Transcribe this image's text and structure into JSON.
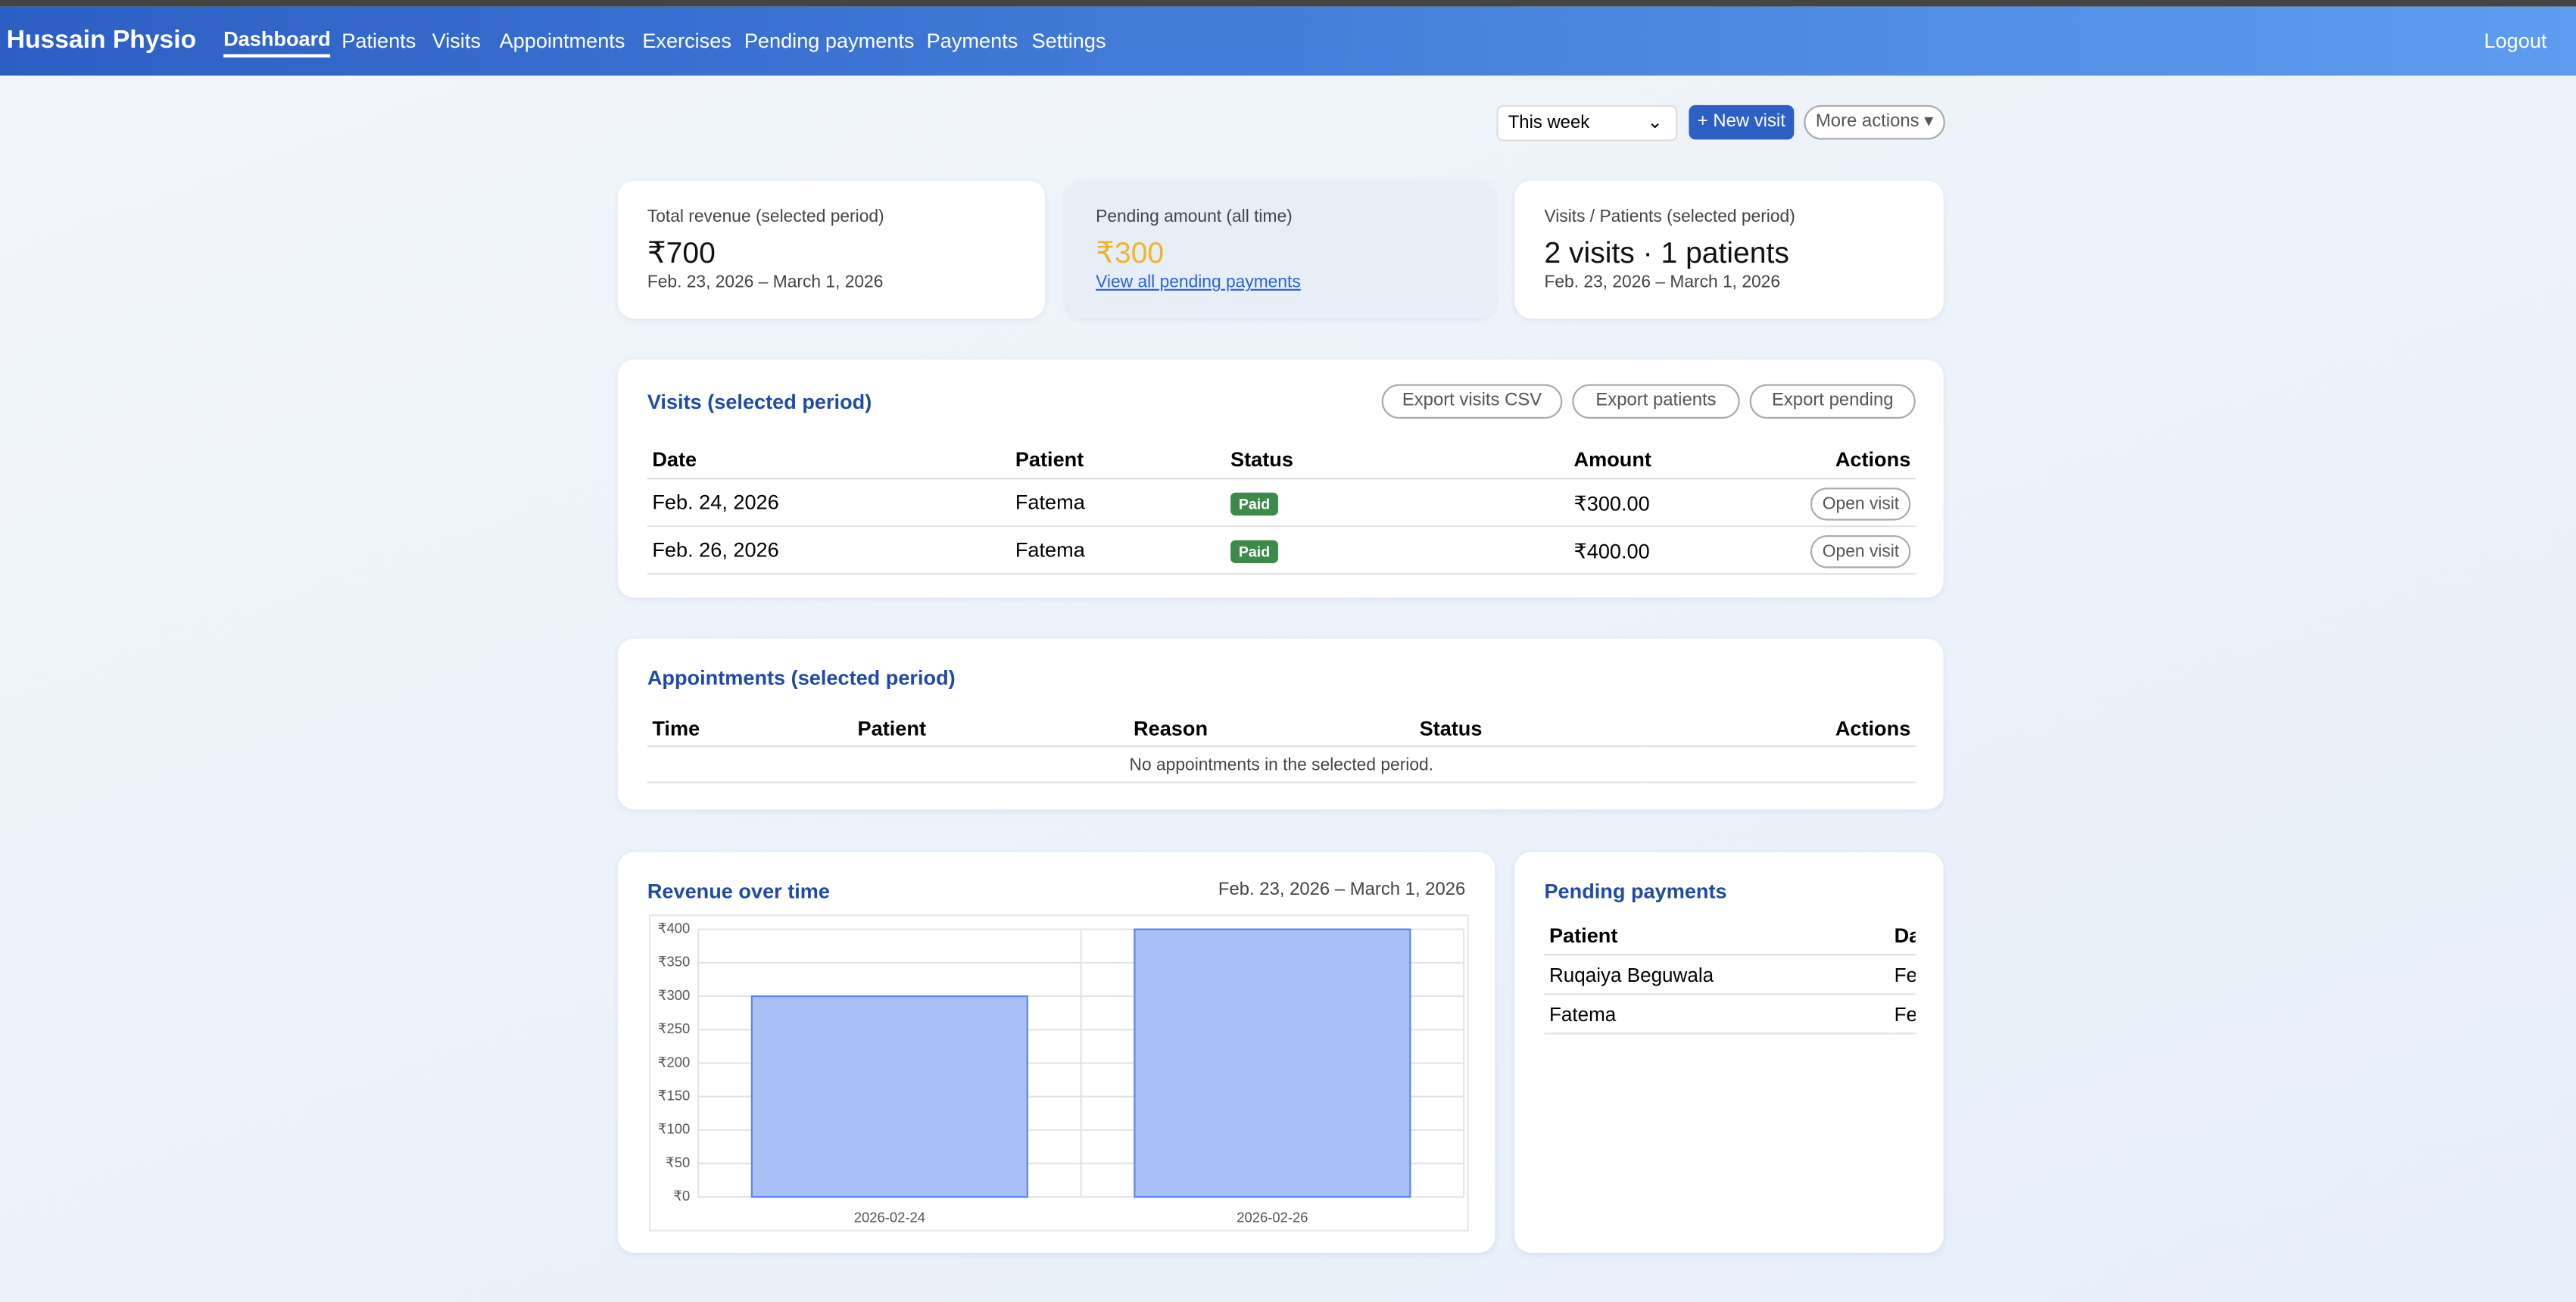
{
  "nav": {
    "brand": "Hussain Physio",
    "links": [
      "Dashboard",
      "Patients",
      "Visits",
      "Appointments",
      "Exercises",
      "Pending payments",
      "Payments",
      "Settings"
    ],
    "logout": "Logout"
  },
  "toolbar": {
    "period": "This week",
    "new_visit": "+ New visit",
    "more_actions": "More actions"
  },
  "cards": [
    {
      "label": "Total revenue (selected period)",
      "value": "₹700",
      "sub": "Feb. 23, 2026 – March 1, 2026"
    },
    {
      "label": "Pending amount (all time)",
      "value": "₹300",
      "sub": "View all pending payments"
    },
    {
      "label": "Visits / Patients (selected period)",
      "value": "2 visits · 1 patients",
      "sub": "Feb. 23, 2026 – March 1, 2026"
    }
  ],
  "visits": {
    "title": "Visits (selected period)",
    "exports": [
      "Export visits CSV",
      "Export patients",
      "Export pending"
    ],
    "columns": [
      "Date",
      "Patient",
      "Status",
      "Amount",
      "Actions"
    ],
    "rows": [
      [
        "Feb. 24, 2026",
        "Fatema",
        "Paid",
        "₹300.00",
        "Open visit"
      ],
      [
        "Feb. 26, 2026",
        "Fatema",
        "Paid",
        "₹400.00",
        "Open visit"
      ]
    ]
  },
  "appointments": {
    "title": "Appointments (selected period)",
    "columns": [
      "Time",
      "Patient",
      "Reason",
      "Status",
      "Actions"
    ],
    "empty": "No appointments in the selected period."
  },
  "revenue": {
    "title": "Revenue over time",
    "range": "Feb. 23, 2026 – March 1, 2026",
    "chart_data": {
      "type": "bar",
      "categories": [
        "2026-02-24",
        "2026-02-26"
      ],
      "values": [
        300,
        400
      ],
      "color": "#a9c0f7",
      "border": "#5b84e8",
      "ylim": [
        0,
        400
      ],
      "yticks": [
        {
          "value": 0,
          "label": "₹0"
        },
        {
          "value": 50,
          "label": "₹50"
        },
        {
          "value": 100,
          "label": "₹100"
        },
        {
          "value": 150,
          "label": "₹150"
        },
        {
          "value": 200,
          "label": "₹200"
        },
        {
          "value": 250,
          "label": "₹250"
        },
        {
          "value": 300,
          "label": "₹300"
        },
        {
          "value": 350,
          "label": "₹350"
        },
        {
          "value": 400,
          "label": "₹400"
        }
      ],
      "grid": true
    }
  },
  "pending": {
    "title": "Pending payments",
    "columns": [
      "Patient",
      "Date"
    ],
    "rows": [
      [
        "Ruqaiya Beguwala",
        "Feb."
      ],
      [
        "Fatema",
        "Feb."
      ]
    ]
  }
}
